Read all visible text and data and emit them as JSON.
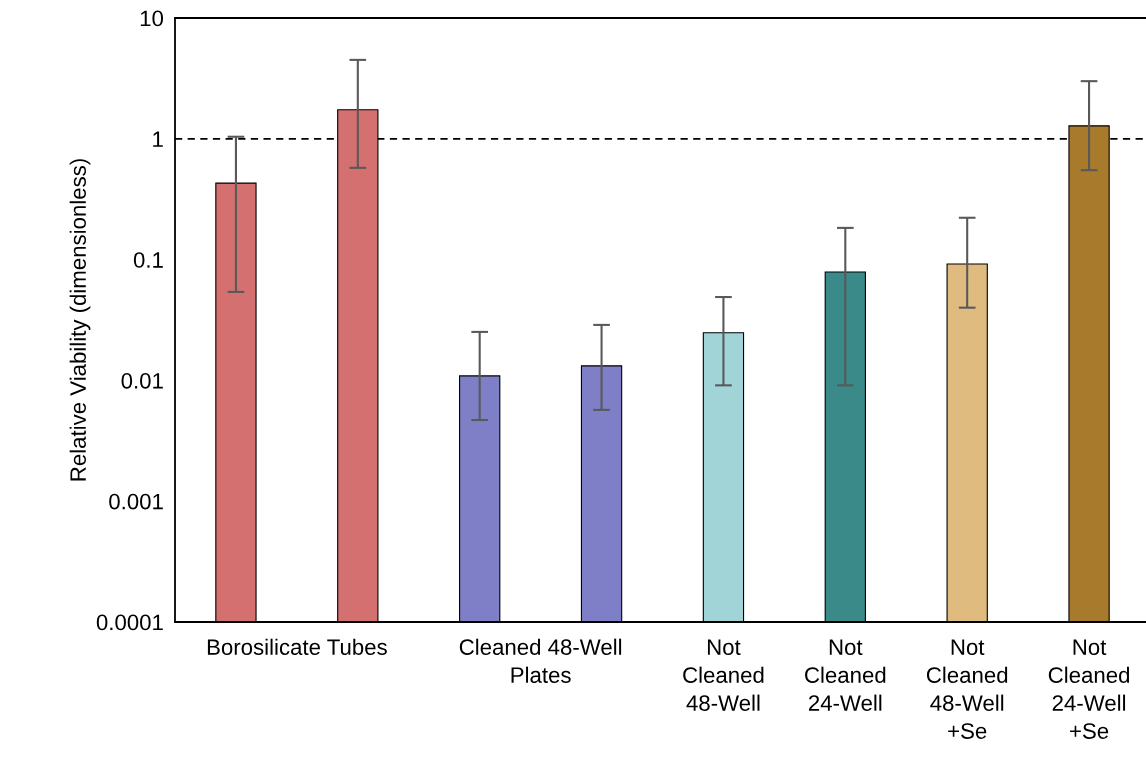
{
  "chart_data": {
    "type": "bar",
    "ylabel": "Relative Viability (dimensionless)",
    "categories": [
      "Borosilicate Tubes",
      "Cleaned 48-Well\nPlates",
      "Not\nCleaned\n48-Well",
      "Not\nCleaned\n24-Well",
      "Not\nCleaned\n48-Well\n+Se",
      "Not\nCleaned\n24-Well\n+Se"
    ],
    "series": [
      {
        "values": [
          0.43,
          0.0109,
          0.0248,
          0.079,
          0.092,
          1.28
        ],
        "colors": [
          "#d47070",
          "#7f7fc8",
          "#a0d4d6",
          "#3a8a8a",
          "#e0bb80",
          "#a87a2c"
        ],
        "errors": [
          [
            0.054,
            1.04
          ],
          [
            0.0047,
            0.0252
          ],
          [
            0.0091,
            0.049
          ],
          [
            0.0091,
            0.183
          ],
          [
            0.04,
            0.222
          ],
          [
            0.55,
            3.0
          ]
        ]
      },
      {
        "values": [
          1.74,
          0.0132,
          null,
          null,
          null,
          null
        ],
        "colors": [
          "#d47070",
          "#7f7fc8",
          null,
          null,
          null,
          null
        ],
        "errors": [
          [
            0.575,
            4.5
          ],
          [
            0.0057,
            0.0288
          ],
          null,
          null,
          null,
          null
        ]
      }
    ],
    "log": true,
    "ylim": [
      0.0001,
      10
    ],
    "yticks": [
      {
        "value": 0.0001,
        "label": "0.0001"
      },
      {
        "value": 0.001,
        "label": "0.001"
      },
      {
        "value": 0.01,
        "label": "0.01"
      },
      {
        "value": 0.1,
        "label": "0.1"
      },
      1,
      10
    ],
    "ref_lines": [
      {
        "axis": "y",
        "value": 1,
        "color": "#000000",
        "line_style": "dashed"
      }
    ],
    "grid": false,
    "legend": false
  }
}
